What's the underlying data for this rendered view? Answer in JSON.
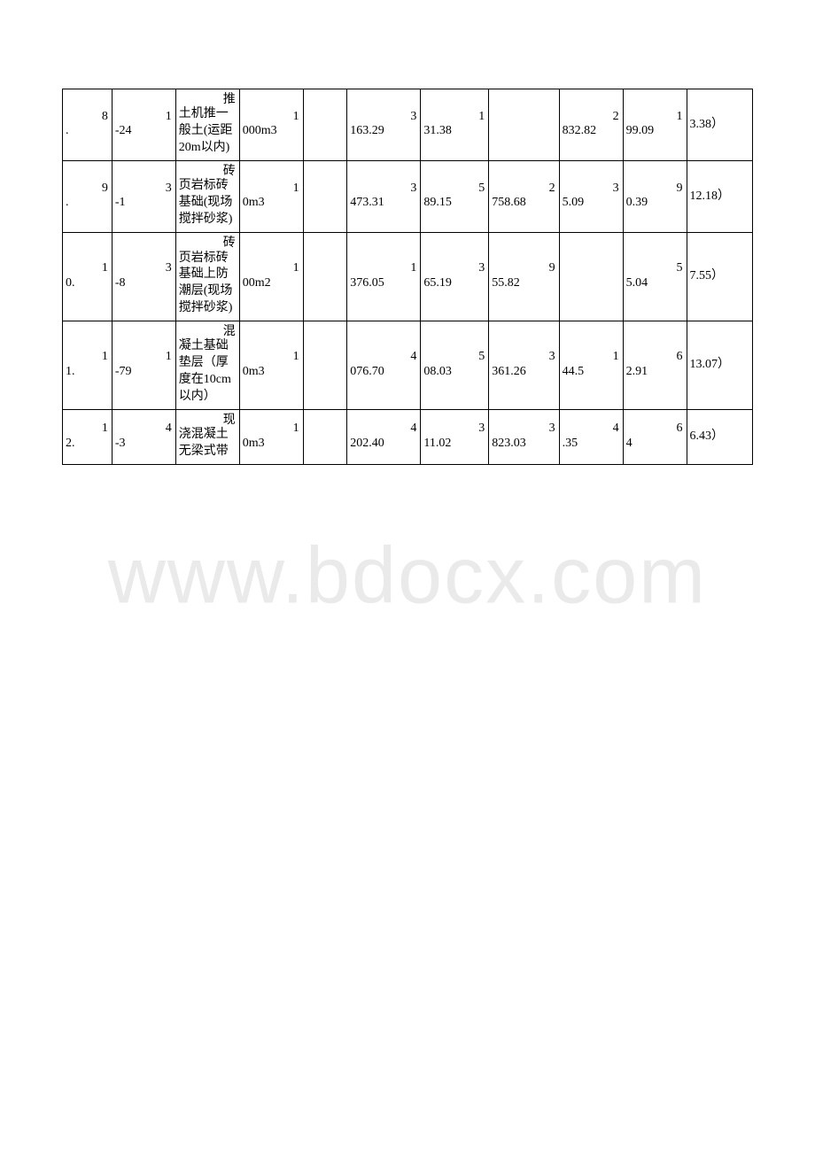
{
  "watermark": "www.bdocx.com",
  "table": {
    "columns": 11,
    "rows": [
      {
        "cells": [
          {
            "sup": "8",
            "main": "."
          },
          {
            "sup": "1",
            "main": "-24"
          },
          {
            "sup": "推",
            "main": "土机推一般土(运距20m以内)"
          },
          {
            "sup": "1",
            "main": "000m3"
          },
          {
            "sup": "",
            "main": ""
          },
          {
            "sup": "3",
            "main": "163.29"
          },
          {
            "sup": "1",
            "main": "31.38"
          },
          {
            "sup": "",
            "main": ""
          },
          {
            "sup": "2",
            "main": "832.82"
          },
          {
            "sup": "1",
            "main": "99.09"
          },
          {
            "sup": "",
            "main": "3.38）"
          }
        ]
      },
      {
        "cells": [
          {
            "sup": "9",
            "main": "."
          },
          {
            "sup": "3",
            "main": "-1"
          },
          {
            "sup": "砖",
            "main": "页岩标砖基础(现场搅拌砂浆)"
          },
          {
            "sup": "1",
            "main": "0m3"
          },
          {
            "sup": "",
            "main": ""
          },
          {
            "sup": "3",
            "main": "473.31"
          },
          {
            "sup": "5",
            "main": "89.15"
          },
          {
            "sup": "2",
            "main": "758.68"
          },
          {
            "sup": "3",
            "main": "5.09"
          },
          {
            "sup": "9",
            "main": "0.39"
          },
          {
            "sup": "",
            "main": "12.18）"
          }
        ]
      },
      {
        "cells": [
          {
            "sup": "1",
            "main": "0."
          },
          {
            "sup": "3",
            "main": "-8"
          },
          {
            "sup": "砖",
            "main": "页岩标砖基础上防潮层(现场搅拌砂浆)"
          },
          {
            "sup": "1",
            "main": "00m2"
          },
          {
            "sup": "",
            "main": ""
          },
          {
            "sup": "1",
            "main": "376.05"
          },
          {
            "sup": "3",
            "main": "65.19"
          },
          {
            "sup": "9",
            "main": "55.82"
          },
          {
            "sup": "",
            "main": ""
          },
          {
            "sup": "5",
            "main": "5.04"
          },
          {
            "sup": "",
            "main": "7.55）"
          }
        ]
      },
      {
        "cells": [
          {
            "sup": "1",
            "main": "1."
          },
          {
            "sup": "1",
            "main": "-79"
          },
          {
            "sup": "混",
            "main": "凝土基础垫层（厚度在10cm 以内）"
          },
          {
            "sup": "1",
            "main": "0m3"
          },
          {
            "sup": "",
            "main": ""
          },
          {
            "sup": "4",
            "main": "076.70"
          },
          {
            "sup": "5",
            "main": "08.03"
          },
          {
            "sup": "3",
            "main": "361.26"
          },
          {
            "sup": "1",
            "main": "44.5"
          },
          {
            "sup": "6",
            "main": "2.91"
          },
          {
            "sup": "",
            "main": "13.07）"
          }
        ]
      },
      {
        "cells": [
          {
            "sup": "1",
            "main": "2."
          },
          {
            "sup": "4",
            "main": "-3"
          },
          {
            "sup": "现",
            "main": "浇混凝土无梁式带"
          },
          {
            "sup": "1",
            "main": "0m3"
          },
          {
            "sup": "",
            "main": ""
          },
          {
            "sup": "4",
            "main": "202.40"
          },
          {
            "sup": "3",
            "main": "11.02"
          },
          {
            "sup": "3",
            "main": "823.03"
          },
          {
            "sup": "4",
            "main": ".35"
          },
          {
            "sup": "6",
            "main": "4"
          },
          {
            "sup": "",
            "main": "6.43）"
          }
        ]
      }
    ],
    "border_color": "#000000",
    "background_color": "#ffffff",
    "text_color": "#000000",
    "font_size": 14,
    "watermark_color": "#eaeaea",
    "watermark_font_size": 90
  }
}
